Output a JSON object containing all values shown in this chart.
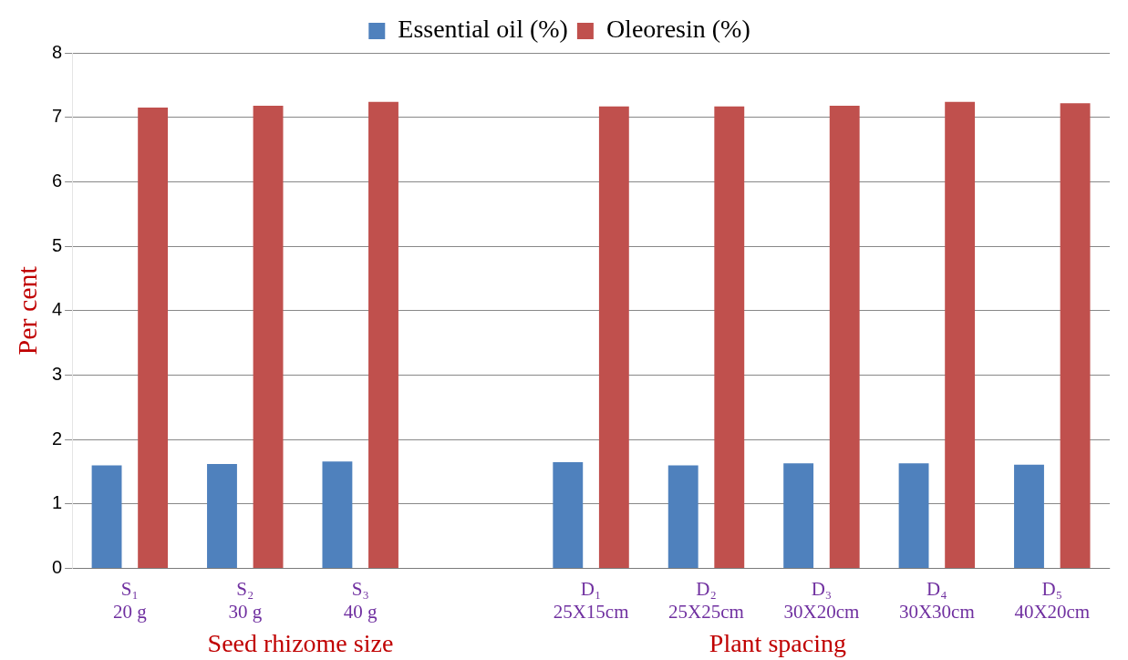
{
  "chart_data": {
    "type": "bar",
    "ylabel": "Per cent",
    "categories": [
      "S₁\n20 g",
      "S₂\n30 g",
      "S₃\n40 g",
      null,
      "D₁\n25X15cm",
      "D₂\n25X25cm",
      "D₃\n30X20cm",
      "D₄\n30X30cm",
      "D₅\n40X20cm"
    ],
    "series": [
      {
        "name": "Essential oil (%)",
        "color": "#4f81bd",
        "values": [
          1.6,
          1.62,
          1.66,
          null,
          1.65,
          1.6,
          1.63,
          1.63,
          1.61
        ]
      },
      {
        "name": "Oleoresin (%)",
        "color": "#c0504d",
        "values": [
          7.15,
          7.18,
          7.24,
          null,
          7.17,
          7.17,
          7.18,
          7.24,
          7.22
        ]
      }
    ],
    "annotations": [
      "Seed rhizome size",
      "Plant spacing"
    ],
    "ylim": [
      0,
      8
    ],
    "yticks": [
      0,
      1,
      2,
      3,
      4,
      5,
      6,
      7,
      8
    ],
    "grid": "y",
    "legend": "top"
  }
}
